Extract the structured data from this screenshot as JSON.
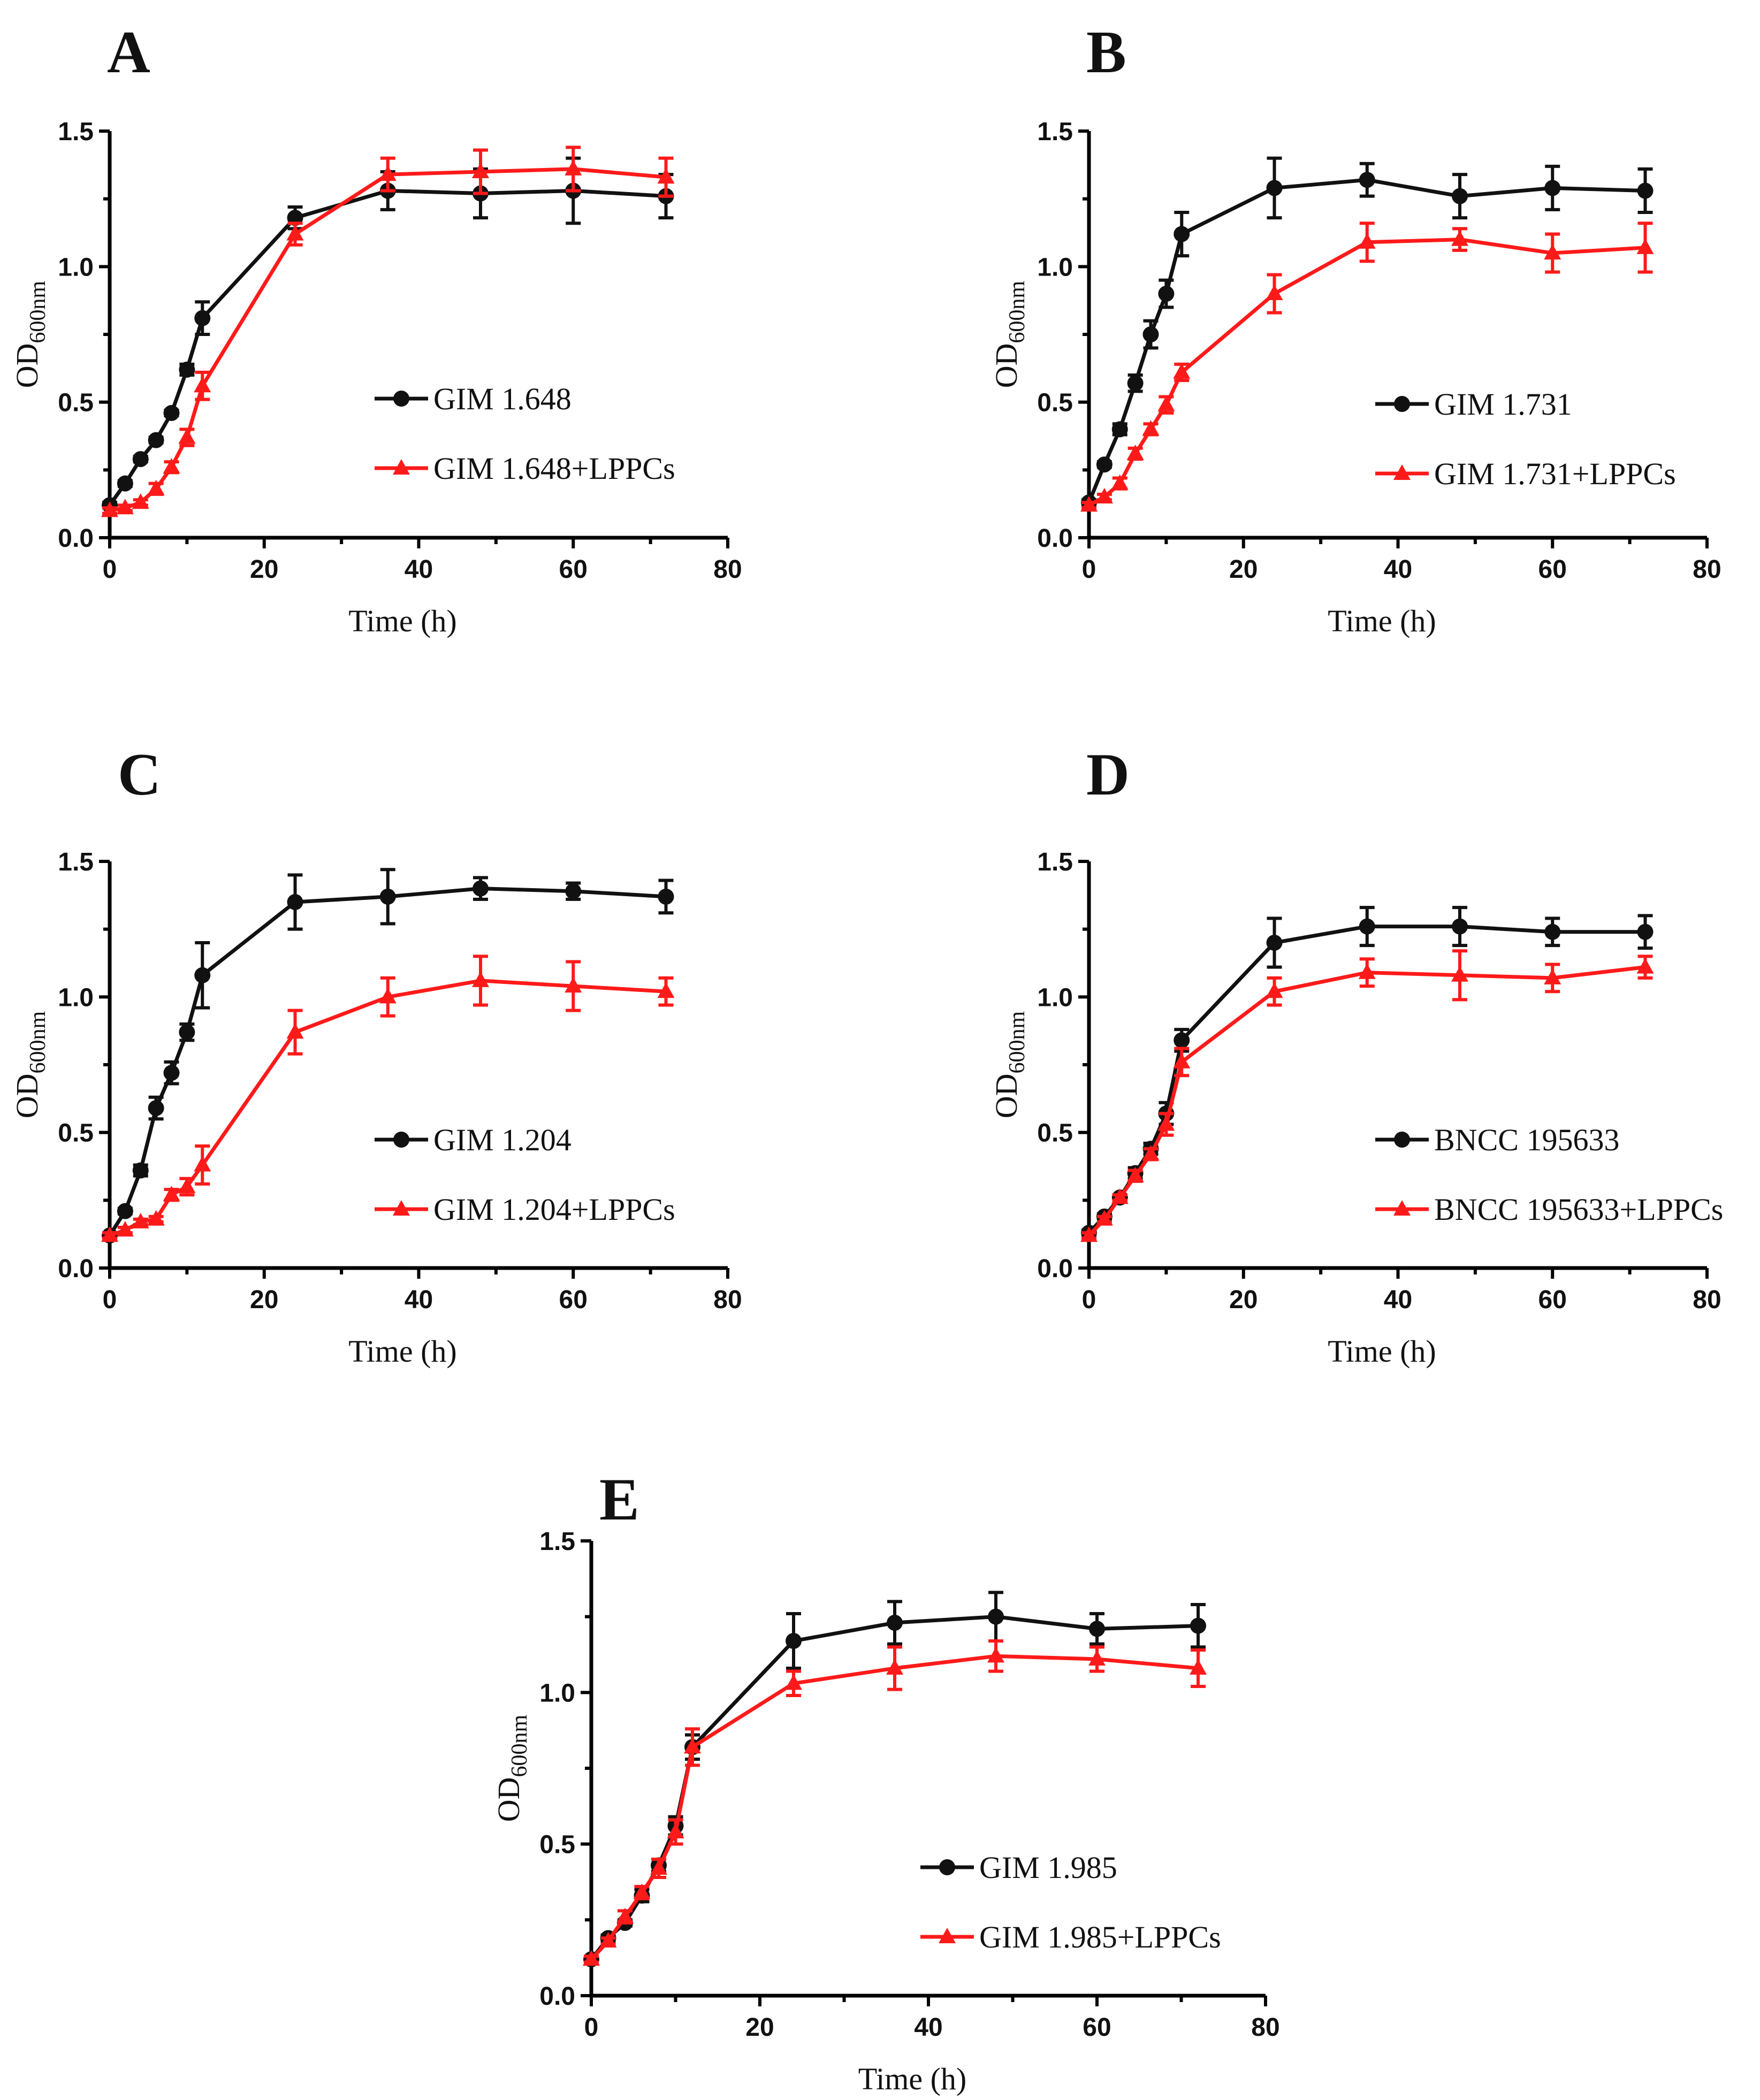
{
  "colors": {
    "black_series": "#111111",
    "red_series": "#ff1a1a",
    "axis": "#000000"
  },
  "chart_data": [
    {
      "panel": "A",
      "type": "line",
      "xlabel": "Time (h)",
      "ylabel_main": "OD",
      "ylabel_sub": "600nm",
      "xlim": [
        0,
        80
      ],
      "ylim": [
        0,
        1.5
      ],
      "xticks": [
        "0",
        "20",
        "40",
        "60",
        "80"
      ],
      "yticks": [
        "0.0",
        "0.5",
        "1.0",
        "1.5"
      ],
      "grid": false,
      "legend_position": "right-middle",
      "series": [
        {
          "name": "GIM 1.648",
          "marker": "circle",
          "color": "#111111",
          "x": [
            0,
            2,
            4,
            6,
            8,
            10,
            12,
            24,
            36,
            48,
            60,
            72
          ],
          "y": [
            0.12,
            0.2,
            0.29,
            0.36,
            0.46,
            0.62,
            0.81,
            1.18,
            1.28,
            1.27,
            1.28,
            1.26
          ],
          "err": [
            0.01,
            0.01,
            0.01,
            0.01,
            0.01,
            0.02,
            0.06,
            0.04,
            0.07,
            0.09,
            0.12,
            0.08
          ]
        },
        {
          "name": "GIM 1.648+LPPCs",
          "marker": "triangle",
          "color": "#ff1a1a",
          "x": [
            0,
            2,
            4,
            6,
            8,
            10,
            12,
            24,
            36,
            48,
            60,
            72
          ],
          "y": [
            0.1,
            0.11,
            0.13,
            0.18,
            0.26,
            0.37,
            0.56,
            1.12,
            1.34,
            1.35,
            1.36,
            1.33
          ],
          "err": [
            0.01,
            0.01,
            0.01,
            0.02,
            0.02,
            0.03,
            0.05,
            0.04,
            0.06,
            0.08,
            0.08,
            0.07
          ]
        }
      ]
    },
    {
      "panel": "B",
      "type": "line",
      "xlabel": "Time (h)",
      "ylabel_main": "OD",
      "ylabel_sub": "600nm",
      "xlim": [
        0,
        80
      ],
      "ylim": [
        0,
        1.5
      ],
      "xticks": [
        "0",
        "20",
        "40",
        "60",
        "80"
      ],
      "yticks": [
        "0.0",
        "0.5",
        "1.0",
        "1.5"
      ],
      "grid": false,
      "legend_position": "right-middle",
      "series": [
        {
          "name": "GIM 1.731",
          "marker": "circle",
          "color": "#111111",
          "x": [
            0,
            2,
            4,
            6,
            8,
            10,
            12,
            24,
            36,
            48,
            60,
            72
          ],
          "y": [
            0.13,
            0.27,
            0.4,
            0.57,
            0.75,
            0.9,
            1.12,
            1.29,
            1.32,
            1.26,
            1.29,
            1.28
          ],
          "err": [
            0.01,
            0.01,
            0.02,
            0.03,
            0.05,
            0.05,
            0.08,
            0.11,
            0.06,
            0.08,
            0.08,
            0.08
          ]
        },
        {
          "name": "GIM 1.731+LPPCs",
          "marker": "triangle",
          "color": "#ff1a1a",
          "x": [
            0,
            2,
            4,
            6,
            8,
            10,
            12,
            24,
            36,
            48,
            60,
            72
          ],
          "y": [
            0.12,
            0.15,
            0.2,
            0.31,
            0.4,
            0.49,
            0.61,
            0.9,
            1.09,
            1.1,
            1.05,
            1.07
          ],
          "err": [
            0.01,
            0.01,
            0.02,
            0.02,
            0.02,
            0.03,
            0.03,
            0.07,
            0.07,
            0.04,
            0.07,
            0.09
          ]
        }
      ]
    },
    {
      "panel": "C",
      "type": "line",
      "xlabel": "Time (h)",
      "ylabel_main": "OD",
      "ylabel_sub": "600nm",
      "xlim": [
        0,
        80
      ],
      "ylim": [
        0,
        1.5
      ],
      "xticks": [
        "0",
        "20",
        "40",
        "60",
        "80"
      ],
      "yticks": [
        "0.0",
        "0.5",
        "1.0",
        "1.5"
      ],
      "grid": false,
      "legend_position": "right-middle",
      "series": [
        {
          "name": "GIM 1.204",
          "marker": "circle",
          "color": "#111111",
          "x": [
            0,
            2,
            4,
            6,
            8,
            10,
            12,
            24,
            36,
            48,
            60,
            72
          ],
          "y": [
            0.12,
            0.21,
            0.36,
            0.59,
            0.72,
            0.87,
            1.08,
            1.35,
            1.37,
            1.4,
            1.39,
            1.37
          ],
          "err": [
            0.01,
            0.01,
            0.02,
            0.04,
            0.04,
            0.03,
            0.12,
            0.1,
            0.1,
            0.04,
            0.03,
            0.06
          ]
        },
        {
          "name": "GIM 1.204+LPPCs",
          "marker": "triangle",
          "color": "#ff1a1a",
          "x": [
            0,
            2,
            4,
            6,
            8,
            10,
            12,
            24,
            36,
            48,
            60,
            72
          ],
          "y": [
            0.12,
            0.14,
            0.17,
            0.18,
            0.27,
            0.3,
            0.38,
            0.87,
            1.0,
            1.06,
            1.04,
            1.02
          ],
          "err": [
            0.01,
            0.01,
            0.01,
            0.01,
            0.02,
            0.03,
            0.07,
            0.08,
            0.07,
            0.09,
            0.09,
            0.05
          ]
        }
      ]
    },
    {
      "panel": "D",
      "type": "line",
      "xlabel": "Time (h)",
      "ylabel_main": "OD",
      "ylabel_sub": "600nm",
      "xlim": [
        0,
        80
      ],
      "ylim": [
        0,
        1.5
      ],
      "xticks": [
        "0",
        "20",
        "40",
        "60",
        "80"
      ],
      "yticks": [
        "0.0",
        "0.5",
        "1.0",
        "1.5"
      ],
      "grid": false,
      "legend_position": "right-middle",
      "series": [
        {
          "name": "BNCC 195633",
          "marker": "circle",
          "color": "#111111",
          "x": [
            0,
            2,
            4,
            6,
            8,
            10,
            12,
            24,
            36,
            48,
            60,
            72
          ],
          "y": [
            0.13,
            0.19,
            0.26,
            0.35,
            0.44,
            0.57,
            0.84,
            1.2,
            1.26,
            1.26,
            1.24,
            1.24
          ],
          "err": [
            0.01,
            0.01,
            0.01,
            0.02,
            0.02,
            0.04,
            0.04,
            0.09,
            0.07,
            0.07,
            0.05,
            0.06
          ]
        },
        {
          "name": "BNCC 195633+LPPCs",
          "marker": "triangle",
          "color": "#ff1a1a",
          "x": [
            0,
            2,
            4,
            6,
            8,
            10,
            12,
            24,
            36,
            48,
            60,
            72
          ],
          "y": [
            0.12,
            0.18,
            0.26,
            0.34,
            0.42,
            0.53,
            0.76,
            1.02,
            1.09,
            1.08,
            1.07,
            1.11
          ],
          "err": [
            0.01,
            0.01,
            0.01,
            0.02,
            0.02,
            0.04,
            0.05,
            0.05,
            0.05,
            0.09,
            0.05,
            0.04
          ]
        }
      ]
    },
    {
      "panel": "E",
      "type": "line",
      "xlabel": "Time (h)",
      "ylabel_main": "OD",
      "ylabel_sub": "600nm",
      "xlim": [
        0,
        80
      ],
      "ylim": [
        0,
        1.5
      ],
      "xticks": [
        "0",
        "20",
        "40",
        "60",
        "80"
      ],
      "yticks": [
        "0.0",
        "0.5",
        "1.0",
        "1.5"
      ],
      "grid": false,
      "legend_position": "right-lower",
      "series": [
        {
          "name": "GIM 1.985",
          "marker": "circle",
          "color": "#111111",
          "x": [
            0,
            2,
            4,
            6,
            8,
            10,
            12,
            24,
            36,
            48,
            60,
            72
          ],
          "y": [
            0.12,
            0.19,
            0.24,
            0.33,
            0.43,
            0.56,
            0.82,
            1.17,
            1.23,
            1.25,
            1.21,
            1.22
          ],
          "err": [
            0.01,
            0.01,
            0.01,
            0.02,
            0.02,
            0.03,
            0.04,
            0.09,
            0.07,
            0.08,
            0.05,
            0.07
          ]
        },
        {
          "name": "GIM 1.985+LPPCs",
          "marker": "triangle",
          "color": "#ff1a1a",
          "x": [
            0,
            2,
            4,
            6,
            8,
            10,
            12,
            24,
            36,
            48,
            60,
            72
          ],
          "y": [
            0.12,
            0.18,
            0.26,
            0.34,
            0.42,
            0.54,
            0.82,
            1.03,
            1.08,
            1.12,
            1.11,
            1.08
          ],
          "err": [
            0.01,
            0.01,
            0.02,
            0.02,
            0.03,
            0.04,
            0.06,
            0.04,
            0.07,
            0.05,
            0.04,
            0.06
          ]
        }
      ]
    }
  ]
}
